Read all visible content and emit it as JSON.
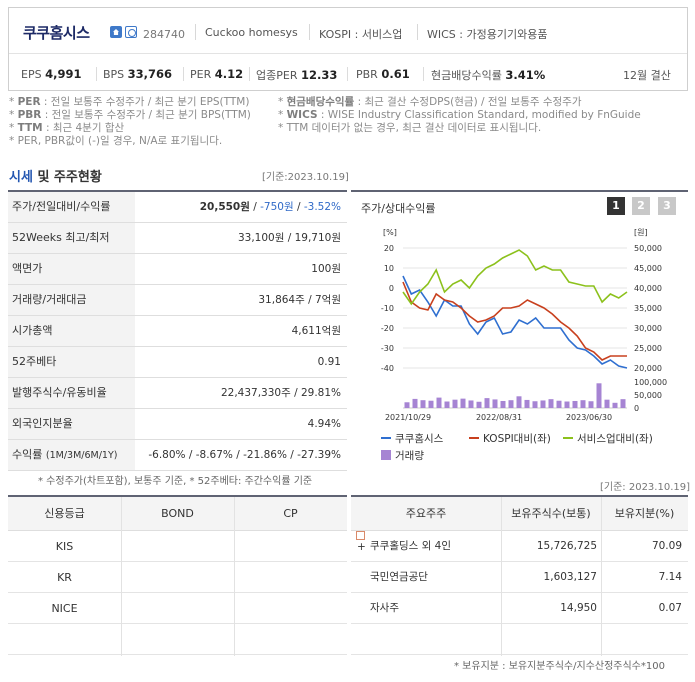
{
  "header": {
    "name": "쿠쿠홈시스",
    "code": "284740",
    "eng_name": "Cuckoo homesys",
    "market": "KOSPI : 서비스업",
    "wics": "WICS : 가정용기기와용품",
    "metrics": {
      "eps_label": "EPS",
      "eps": "4,991",
      "bps_label": "BPS",
      "bps": "33,766",
      "per_label": "PER",
      "per": "4.12",
      "iper_label": "업종PER",
      "iper": "12.33",
      "pbr_label": "PBR",
      "pbr": "0.61",
      "div_label": "현금배당수익률",
      "div": "3.41%",
      "settle": "12월 결산"
    }
  },
  "notes": {
    "per_k": "PER",
    "per_t": ": 전일 보통주 수정주가 / 최근 분기 EPS(TTM)",
    "pbr_k": "PBR",
    "pbr_t": ": 전일 보통주 수정주가 / 최근 분기 BPS(TTM)",
    "ttm_k": "TTM",
    "ttm_t": ": 최근 4분기 합산",
    "na": "* PER, PBR값이 (-)일 경우, N/A로 표기됩니다.",
    "div_k": "현금배당수익률",
    "div_t": ": 최근 결산 수정DPS(현금) / 전일 보통주 수정주가",
    "wics_k": "WICS",
    "wics_t": ": WISE Industry Classification Standard, modified by FnGuide",
    "ttm_note": "* TTM 데이터가 없는 경우, 최근 결산 데이터로 표시됩니다."
  },
  "market_section": {
    "title_a": "시세",
    "title_b": " 및 주주현황",
    "date": "[기준:2023.10.19]",
    "rows": [
      {
        "label": "주가/전일대비/수익률"
      },
      {
        "label": "52Weeks 최고/최저",
        "value": "33,100원 / 19,710원"
      },
      {
        "label": "액면가",
        "value": "100원"
      },
      {
        "label": "거래량/거래대금",
        "value": "31,864주 / 7억원"
      },
      {
        "label": "시가총액",
        "value": "4,611억원"
      },
      {
        "label": "52주베타",
        "value": "0.91"
      },
      {
        "label": "발행주식수/유동비율",
        "value": "22,437,330주 / 29.81%"
      },
      {
        "label": "외국인지분율",
        "value": "4.94%"
      },
      {
        "label": "수익률",
        "sub": "(1M/3M/6M/1Y)"
      }
    ],
    "price": "20,550원",
    "change": "-750원",
    "rate": "-3.52%",
    "ret_1m": "-6.80%",
    "ret_3m": "-8.67%",
    "ret_6m": "-21.86%",
    "ret_1y": "-27.39%",
    "foot": "* 수정주가(차트포함), 보통주 기준, * 52주베타: 주간수익률 기준"
  },
  "chart_panel": {
    "title": "주가/상대수익률",
    "tabs": [
      "1",
      "2",
      "3"
    ],
    "active_tab": 0
  },
  "chart_data": {
    "type": "line",
    "left_unit": "[%]",
    "right_unit": "[원]",
    "left_ticks": [
      "20",
      "10",
      "0",
      "-10",
      "-20",
      "-30",
      "-40"
    ],
    "right_ticks": [
      "50,000",
      "45,000",
      "40,000",
      "35,000",
      "30,000",
      "25,000",
      "20,000"
    ],
    "vol_ticks": [
      "100,000",
      "50,000",
      "0"
    ],
    "x_ticks": [
      "2021/10/29",
      "2022/08/31",
      "2023/06/30"
    ],
    "ylim_left": [
      -40,
      20
    ],
    "vol_lim": [
      0,
      100000
    ],
    "series": [
      {
        "name": "쿠쿠홈시스",
        "color": "#2f6fd0",
        "values": [
          6,
          -3,
          -1,
          -7,
          -14,
          -6,
          -9,
          -9,
          -18,
          -23,
          -17,
          -15,
          -23,
          -22,
          -16,
          -18,
          -15,
          -20,
          -20,
          -20,
          -26,
          -30,
          -31,
          -34,
          -38,
          -36,
          -39,
          -40
        ]
      },
      {
        "name": "KOSPI대비(좌)",
        "color": "#c8401e",
        "values": [
          3,
          -7,
          -10,
          -11,
          -3,
          -6,
          -7,
          -10,
          -14,
          -17,
          -16,
          -14,
          -10,
          -10,
          -9,
          -6,
          -8,
          -10,
          -13,
          -17,
          -20,
          -24,
          -30,
          -32,
          -36,
          -34,
          -34,
          -34
        ]
      },
      {
        "name": "서비스업대비(좌)",
        "color": "#8cc11c",
        "values": [
          -2,
          -8,
          -2,
          2,
          9,
          -2,
          2,
          4,
          0,
          6,
          10,
          12,
          15,
          17,
          19,
          16,
          9,
          11,
          9,
          9,
          3,
          2,
          1,
          1,
          -7,
          -3,
          -5,
          -2
        ]
      }
    ],
    "volume": {
      "name": "거래량",
      "color": "#a684d3",
      "values": [
        22000,
        35000,
        30000,
        28000,
        40000,
        25000,
        32000,
        36000,
        29000,
        24000,
        38000,
        33000,
        27000,
        30000,
        45000,
        31000,
        26000,
        29000,
        34000,
        28000,
        25000,
        27000,
        30000,
        26000,
        95000,
        32000,
        20000,
        34000
      ]
    }
  },
  "credit": {
    "date": "[기준: 2023.10.19]",
    "headers": [
      "신용등급",
      "BOND",
      "CP"
    ],
    "rows": [
      [
        "KIS",
        "",
        ""
      ],
      [
        "KR",
        "",
        ""
      ],
      [
        "NICE",
        "",
        ""
      ],
      [
        "",
        "",
        ""
      ]
    ]
  },
  "shareholders": {
    "headers": [
      "주요주주",
      "보유주식수(보통)",
      "보유지분(%)"
    ],
    "rows": [
      {
        "name": "쿠쿠홀딩스 외 4인",
        "shares": "15,726,725",
        "ratio": "70.09",
        "expand": true
      },
      {
        "name": "국민연금공단",
        "shares": "1,603,127",
        "ratio": "7.14",
        "expand": false
      },
      {
        "name": "자사주",
        "shares": "14,950",
        "ratio": "0.07",
        "expand": false
      },
      {
        "name": "",
        "shares": "",
        "ratio": "",
        "expand": false
      }
    ],
    "foot": "* 보유지분 : 보유지분주식수/지수산정주식수*100"
  }
}
